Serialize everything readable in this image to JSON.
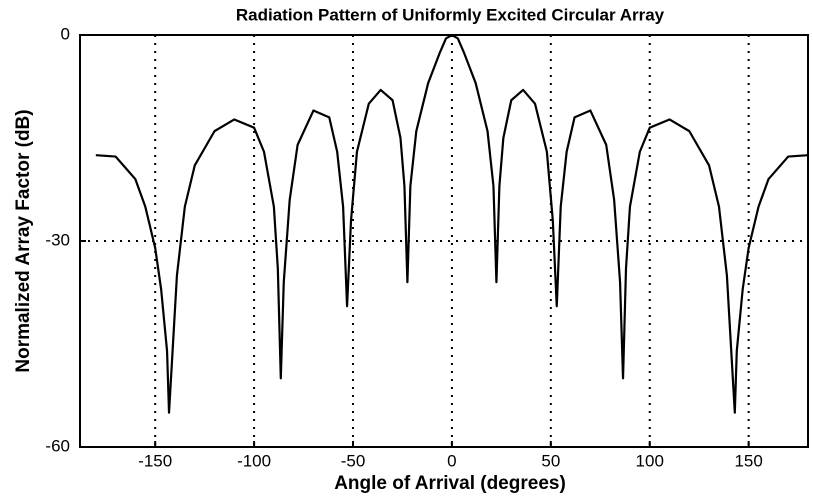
{
  "chart_data": {
    "type": "line",
    "title": "Radiation Pattern of Uniformly Excited Circular Array",
    "xlabel": "Angle of Arrival (degrees)",
    "ylabel": "Normalized Array Factor (dB)",
    "x": [
      -180,
      -170,
      -160,
      -155,
      -150,
      -147,
      -144,
      -143,
      -141,
      -139,
      -135,
      -130,
      -120,
      -110,
      -100,
      -95,
      -90,
      -88,
      -86.5,
      -85,
      -82,
      -78,
      -70,
      -62,
      -58,
      -55,
      -53,
      -51,
      -48,
      -42,
      -36,
      -30,
      -26,
      -24,
      -22.5,
      -21,
      -18,
      -12,
      -6,
      -3,
      0,
      3,
      6,
      12,
      18,
      21,
      22.5,
      24,
      26,
      30,
      36,
      42,
      48,
      51,
      53,
      55,
      58,
      62,
      70,
      78,
      82,
      85,
      86.5,
      88,
      90,
      95,
      100,
      110,
      120,
      130,
      135,
      139,
      141,
      143,
      144,
      147,
      150,
      155,
      160,
      170,
      180
    ],
    "series": [
      {
        "color": "#000000",
        "values": [
          -17.5,
          -17.7,
          -21,
          -25,
          -31,
          -37,
          -46,
          -55,
          -45,
          -35,
          -25,
          -19,
          -14,
          -12.3,
          -13.5,
          -17,
          -25,
          -34,
          -50,
          -36,
          -24,
          -16,
          -11,
          -12,
          -17,
          -25,
          -39.5,
          -27,
          -17,
          -10,
          -8,
          -9.5,
          -15,
          -22,
          -36,
          -22,
          -14,
          -7,
          -2.5,
          -0.5,
          0,
          -0.5,
          -2.5,
          -7,
          -14,
          -22,
          -36,
          -22,
          -15,
          -9.5,
          -8,
          -10,
          -17,
          -27,
          -39.5,
          -25,
          -17,
          -12,
          -11,
          -16,
          -24,
          -36,
          -50,
          -34,
          -25,
          -17,
          -13.5,
          -12.3,
          -14,
          -19,
          -25,
          -35,
          -45,
          -55,
          -46,
          -37,
          -31,
          -25,
          -21,
          -17.7,
          -17.5
        ]
      }
    ],
    "xlim": [
      -188,
      180
    ],
    "ylim": [
      -60,
      0
    ],
    "xticks": [
      -150,
      -100,
      -50,
      0,
      50,
      100,
      150
    ],
    "yticks": [
      -60,
      -30,
      0
    ],
    "grid": true
  }
}
